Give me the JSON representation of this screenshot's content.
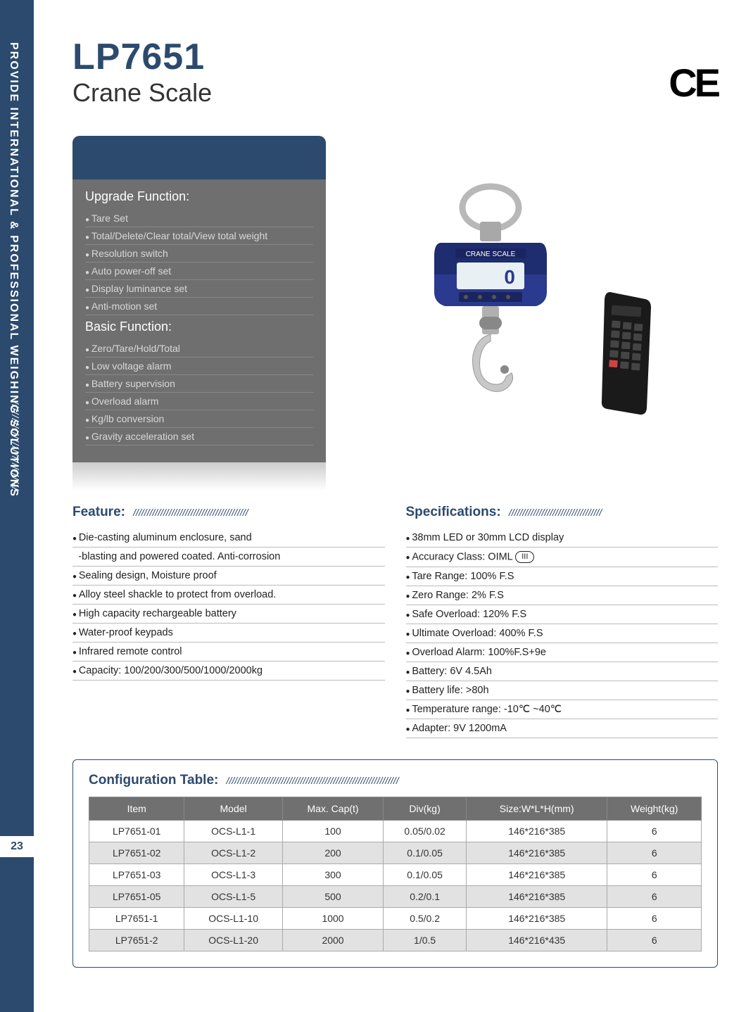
{
  "sidebar": {
    "vertical_text": "PROVIDE INTERNATIONAL & PROFESSIONAL WEIGHING SOLUTIONS",
    "slashes": "//////////////////////////",
    "page_number": "23",
    "bg_color": "#2c4a6e"
  },
  "header": {
    "product_code": "LP7651",
    "product_name": "Crane Scale",
    "ce_mark": "CE"
  },
  "functions": {
    "upgrade_title": "Upgrade Function:",
    "upgrade_items": [
      "Tare Set",
      "Total/Delete/Clear total/View total weight",
      "Resolution switch",
      "Auto power-off set",
      "Display luminance set",
      "Anti-motion set"
    ],
    "basic_title": "Basic Function:",
    "basic_items": [
      "Zero/Tare/Hold/Total",
      "Low voltage alarm",
      "Battery supervision",
      "Overload alarm",
      "Kg/lb conversion",
      "Gravity acceleration set"
    ]
  },
  "feature": {
    "title": "Feature:",
    "slashes": "//////////////////////////////////////////",
    "items": [
      {
        "text": "Die-casting aluminum enclosure, sand",
        "bullet": true
      },
      {
        "text": "-blasting and powered coated. Anti-corrosion",
        "bullet": false
      },
      {
        "text": "Sealing design, Moisture proof",
        "bullet": true
      },
      {
        "text": "Alloy steel shackle to protect from overload.",
        "bullet": true
      },
      {
        "text": "High capacity rechargeable battery",
        "bullet": true
      },
      {
        "text": "Water-proof keypads",
        "bullet": true
      },
      {
        "text": "Infrared remote control",
        "bullet": true
      },
      {
        "text": "Capacity: 100/200/300/500/1000/2000kg",
        "bullet": true
      }
    ]
  },
  "specs": {
    "title": "Specifications:",
    "slashes": "//////////////////////////////////",
    "items": [
      "38mm LED or 30mm LCD display",
      "Accuracy Class: OIML",
      "Tare Range: 100% F.S",
      "Zero Range: 2% F.S",
      "Safe Overload: 120% F.S",
      "Ultimate Overload: 400% F.S",
      "Overload Alarm: 100%F.S+9e",
      "Battery: 6V 4.5Ah",
      "Battery life: >80h",
      "Temperature range: -10℃ ~40℃",
      "Adapter: 9V 1200mA"
    ],
    "oiml_class": "III"
  },
  "config": {
    "title": "Configuration Table:",
    "slashes": "///////////////////////////////////////////////////////////////",
    "columns": [
      "Item",
      "Model",
      "Max. Cap(t)",
      "Div(kg)",
      "Size:W*L*H(mm)",
      "Weight(kg)"
    ],
    "rows": [
      [
        "LP7651-01",
        "OCS-L1-1",
        "100",
        "0.05/0.02",
        "146*216*385",
        "6"
      ],
      [
        "LP7651-02",
        "OCS-L1-2",
        "200",
        "0.1/0.05",
        "146*216*385",
        "6"
      ],
      [
        "LP7651-03",
        "OCS-L1-3",
        "300",
        "0.1/0.05",
        "146*216*385",
        "6"
      ],
      [
        "LP7651-05",
        "OCS-L1-5",
        "500",
        "0.2/0.1",
        "146*216*385",
        "6"
      ],
      [
        "LP7651-1",
        "OCS-L1-10",
        "1000",
        "0.5/0.2",
        "146*216*385",
        "6"
      ],
      [
        "LP7651-2",
        "OCS-L1-20",
        "2000",
        "1/0.5",
        "146*216*435",
        "6"
      ]
    ]
  },
  "crane_image": {
    "body_color": "#2a3a8e",
    "shackle_color": "#c0c0c0",
    "hook_color": "#d0d0d0",
    "display_bg": "#e8f0f4",
    "display_text": "0",
    "label_text": "CRANE SCALE"
  },
  "remote": {
    "body_color": "#1a1a1a"
  }
}
